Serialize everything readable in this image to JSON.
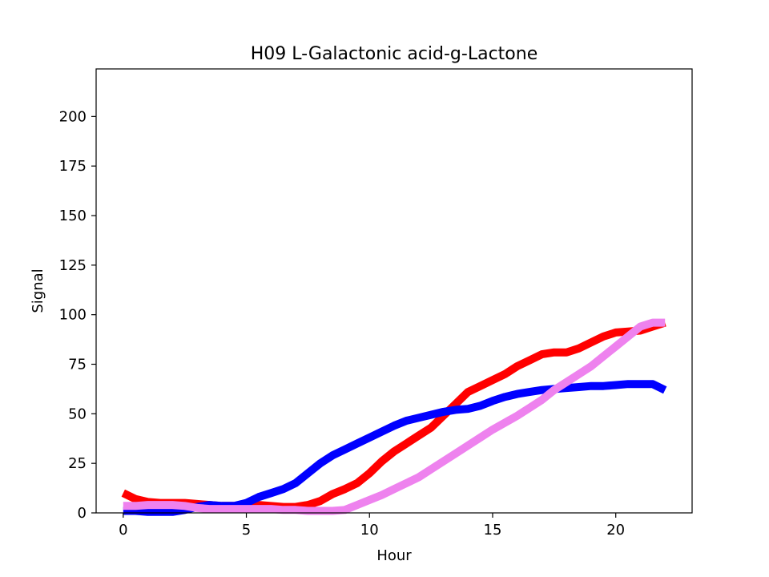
{
  "chart_data": {
    "type": "line",
    "title": "H09 L-Galactonic acid-g-Lactone",
    "xlabel": "Hour",
    "ylabel": "Signal",
    "xlim": [
      -1.1,
      23.1
    ],
    "ylim": [
      0,
      224
    ],
    "xticks": [
      0,
      5,
      10,
      15,
      20
    ],
    "yticks": [
      0,
      25,
      50,
      75,
      100,
      125,
      150,
      175,
      200
    ],
    "grid": false,
    "legend": "none",
    "x": [
      0,
      0.5,
      1,
      1.5,
      2,
      2.5,
      3,
      3.5,
      4,
      4.5,
      5,
      5.5,
      6,
      6.5,
      7,
      7.5,
      8,
      8.5,
      9,
      9.5,
      10,
      10.5,
      11,
      11.5,
      12,
      12.5,
      13,
      13.5,
      14,
      14.5,
      15,
      15.5,
      16,
      16.5,
      17,
      17.5,
      18,
      18.5,
      19,
      19.5,
      20,
      20.5,
      21,
      21.5,
      22
    ],
    "series": [
      {
        "color": "#ff0000",
        "values": [
          10,
          7,
          5.5,
          5,
          5,
          5,
          4.5,
          4,
          3.5,
          3.5,
          4,
          4,
          3.5,
          3,
          3,
          4,
          6,
          9.5,
          12,
          15,
          20,
          26,
          31,
          35,
          39,
          43,
          49,
          55,
          61,
          64,
          67,
          70,
          74,
          77,
          80,
          81,
          81,
          83,
          86,
          89,
          91,
          91.5,
          92,
          94,
          96
        ]
      },
      {
        "color": "#0000ff",
        "values": [
          1,
          1,
          0.5,
          0.5,
          0.5,
          1.5,
          3,
          4,
          3.5,
          3.5,
          5,
          8,
          10,
          12,
          15,
          20,
          25,
          29,
          32,
          35,
          38,
          41,
          44,
          46.5,
          48,
          49.5,
          51,
          52,
          52.5,
          54,
          56.5,
          58.5,
          60,
          61,
          62,
          62.5,
          63,
          63.5,
          64,
          64,
          64.5,
          65,
          65,
          65,
          62
        ]
      },
      {
        "color": "#ee82ee",
        "values": [
          3.5,
          3.5,
          4,
          4,
          4,
          3.5,
          2.5,
          2,
          2,
          2,
          2,
          2,
          2,
          1.5,
          1.5,
          1,
          1,
          1,
          1.5,
          4,
          6.5,
          9,
          12,
          15,
          18,
          22,
          26,
          30,
          34,
          38,
          42,
          45.5,
          49,
          53,
          57,
          62,
          66,
          70,
          74,
          79,
          84,
          89,
          94,
          96,
          96
        ]
      }
    ]
  }
}
